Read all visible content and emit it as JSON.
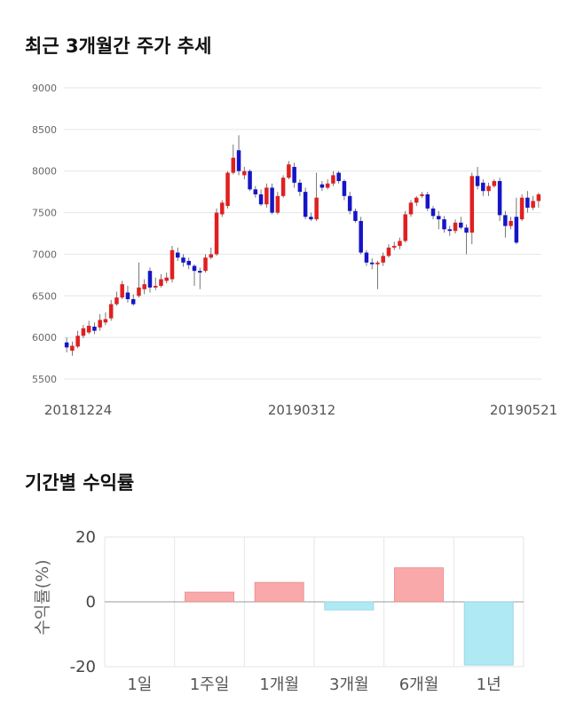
{
  "sections": {
    "price_title": "최근 3개월간 주가 추세",
    "returns_title": "기간별 수익률"
  },
  "colors": {
    "up": "#e02020",
    "down": "#1515c8",
    "positive_bar": "#f9a9a9",
    "negative_bar": "#aee9f4",
    "grid": "#e6e6e6"
  },
  "chart_data": [
    {
      "type": "candlestick",
      "title": "",
      "ylim": [
        5500,
        9000
      ],
      "yticks": [
        9000,
        8500,
        8000,
        7500,
        7000,
        6500,
        6000,
        5500
      ],
      "xticks": [
        "20181224",
        "20190312",
        "20190521"
      ],
      "grid": true,
      "candles": [
        [
          5940,
          5880,
          6000,
          5820
        ],
        [
          5840,
          5900,
          5950,
          5780
        ],
        [
          5890,
          6020,
          6080,
          5870
        ],
        [
          6020,
          6110,
          6150,
          5990
        ],
        [
          6060,
          6140,
          6200,
          6040
        ],
        [
          6130,
          6080,
          6180,
          6040
        ],
        [
          6120,
          6210,
          6280,
          6080
        ],
        [
          6180,
          6220,
          6300,
          6150
        ],
        [
          6230,
          6400,
          6450,
          6200
        ],
        [
          6400,
          6480,
          6550,
          6380
        ],
        [
          6480,
          6640,
          6680,
          6460
        ],
        [
          6540,
          6460,
          6620,
          6420
        ],
        [
          6460,
          6400,
          6520,
          6380
        ],
        [
          6500,
          6600,
          6900,
          6480
        ],
        [
          6580,
          6640,
          6700,
          6520
        ],
        [
          6800,
          6600,
          6840,
          6540
        ],
        [
          6600,
          6620,
          6720,
          6570
        ],
        [
          6620,
          6700,
          6760,
          6600
        ],
        [
          6680,
          6720,
          6780,
          6650
        ],
        [
          6700,
          7050,
          7100,
          6660
        ],
        [
          7020,
          6960,
          7080,
          6920
        ],
        [
          6960,
          6900,
          7000,
          6850
        ],
        [
          6920,
          6870,
          6960,
          6820
        ],
        [
          6860,
          6800,
          6880,
          6620
        ],
        [
          6800,
          6780,
          6840,
          6580
        ],
        [
          6800,
          6960,
          7000,
          6780
        ],
        [
          6960,
          7000,
          7080,
          6940
        ],
        [
          7000,
          7500,
          7550,
          6980
        ],
        [
          7480,
          7620,
          7650,
          7450
        ],
        [
          7580,
          7980,
          8000,
          7550
        ],
        [
          7980,
          8160,
          8320,
          7960
        ],
        [
          8250,
          8000,
          8430,
          7950
        ],
        [
          7950,
          8000,
          8050,
          7900
        ],
        [
          8000,
          7780,
          8020,
          7760
        ],
        [
          7780,
          7720,
          7820,
          7680
        ],
        [
          7720,
          7600,
          7780,
          7580
        ],
        [
          7600,
          7800,
          7850,
          7560
        ],
        [
          7800,
          7500,
          7850,
          7480
        ],
        [
          7500,
          7700,
          7750,
          7480
        ],
        [
          7700,
          7920,
          7950,
          7680
        ],
        [
          7920,
          8080,
          8120,
          7900
        ],
        [
          8050,
          7860,
          8100,
          7800
        ],
        [
          7860,
          7750,
          7900,
          7700
        ],
        [
          7750,
          7450,
          7800,
          7420
        ],
        [
          7450,
          7420,
          7500,
          7400
        ],
        [
          7420,
          7680,
          7980,
          7400
        ],
        [
          7840,
          7800,
          7880,
          7760
        ],
        [
          7800,
          7850,
          7900,
          7780
        ],
        [
          7850,
          7950,
          8000,
          7820
        ],
        [
          7980,
          7880,
          8000,
          7850
        ],
        [
          7880,
          7700,
          7900,
          7650
        ],
        [
          7700,
          7520,
          7750,
          7480
        ],
        [
          7520,
          7400,
          7550,
          7380
        ],
        [
          7400,
          7020,
          7450,
          7000
        ],
        [
          7020,
          6900,
          7050,
          6860
        ],
        [
          6900,
          6880,
          6950,
          6820
        ],
        [
          6880,
          6900,
          6920,
          6580
        ],
        [
          6900,
          6980,
          7020,
          6860
        ],
        [
          6980,
          7080,
          7120,
          6960
        ],
        [
          7080,
          7100,
          7150,
          7050
        ],
        [
          7100,
          7160,
          7200,
          7060
        ],
        [
          7160,
          7480,
          7520,
          7140
        ],
        [
          7480,
          7620,
          7650,
          7450
        ],
        [
          7620,
          7680,
          7700,
          7580
        ],
        [
          7700,
          7720,
          7750,
          7680
        ],
        [
          7720,
          7550,
          7750,
          7520
        ],
        [
          7550,
          7460,
          7580,
          7420
        ],
        [
          7460,
          7420,
          7520,
          7300
        ],
        [
          7420,
          7300,
          7460,
          7260
        ],
        [
          7300,
          7280,
          7340,
          7220
        ],
        [
          7280,
          7380,
          7420,
          7250
        ],
        [
          7380,
          7320,
          7450,
          7300
        ],
        [
          7320,
          7260,
          7360,
          7000
        ],
        [
          7260,
          7940,
          7980,
          7120
        ],
        [
          7940,
          7820,
          8050,
          7780
        ],
        [
          7860,
          7760,
          7900,
          7700
        ],
        [
          7760,
          7820,
          7860,
          7700
        ],
        [
          7820,
          7880,
          7900,
          7800
        ],
        [
          7880,
          7470,
          7920,
          7400
        ],
        [
          7470,
          7340,
          7520,
          7200
        ],
        [
          7340,
          7400,
          7450,
          7300
        ],
        [
          7450,
          7140,
          7680,
          7120
        ],
        [
          7420,
          7680,
          7720,
          7400
        ],
        [
          7680,
          7560,
          7760,
          7500
        ],
        [
          7560,
          7640,
          7700,
          7530
        ],
        [
          7640,
          7720,
          7740,
          7560
        ]
      ]
    },
    {
      "type": "bar",
      "title": "",
      "xlabel": "",
      "ylabel": "수익률(%)",
      "ylim": [
        -20,
        20
      ],
      "yticks": [
        20,
        0,
        -20
      ],
      "categories": [
        "1일",
        "1주일",
        "1개월",
        "3개월",
        "6개월",
        "1년"
      ],
      "values": [
        0,
        3,
        6,
        -2.5,
        10.5,
        -19.5
      ],
      "grid": true
    }
  ]
}
